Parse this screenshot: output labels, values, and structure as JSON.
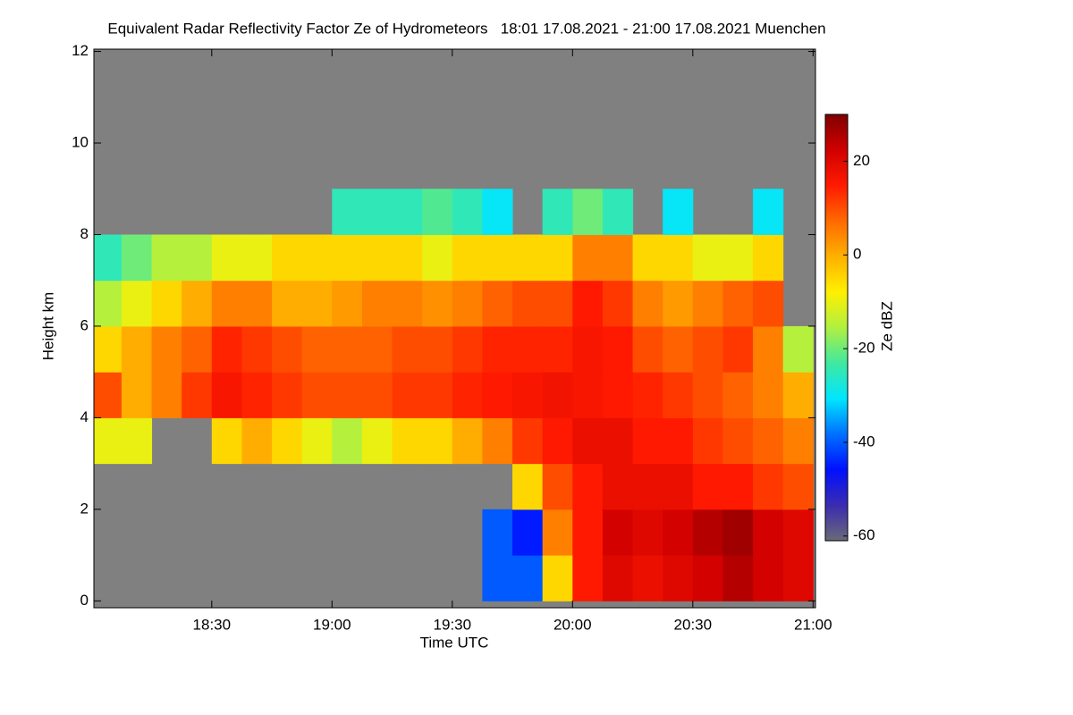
{
  "chart_data": {
    "type": "heatmap",
    "title": "Equivalent Radar Reflectivity Factor Ze of Hydrometeors   18:01 17.08.2021 - 21:00 17.08.2021 Muenchen",
    "x_label": "Time UTC",
    "y_label": "Height km",
    "colorbar_label": "Ze dBZ",
    "background": "#808080",
    "colors": [
      "#6a6a78",
      "#3a2cb0",
      "#0010ff",
      "#0070ff",
      "#00e6ff",
      "#40e8a0",
      "#b0f040",
      "#fff000",
      "#ffb000",
      "#ff6a00",
      "#ff1a00",
      "#d00000",
      "#800000"
    ],
    "xlim": [
      18.01,
      21.01
    ],
    "ylim": [
      -0.15,
      12.05
    ],
    "zlim": [
      -61,
      30
    ],
    "xticks": [
      {
        "value": 18.5,
        "label": "18:30"
      },
      {
        "value": 19.0,
        "label": "19:00"
      },
      {
        "value": 19.5,
        "label": "19:30"
      },
      {
        "value": 20.0,
        "label": "20:00"
      },
      {
        "value": 20.5,
        "label": "20:30"
      },
      {
        "value": 21.0,
        "label": "21:00"
      }
    ],
    "yticks": [
      0,
      2,
      4,
      6,
      8,
      10,
      12
    ],
    "zticks": [
      20,
      0,
      -20,
      -40,
      -60
    ],
    "x": [
      18.0625,
      18.1875,
      18.3125,
      18.4375,
      18.5625,
      18.6875,
      18.8125,
      18.9375,
      19.0625,
      19.1875,
      19.3125,
      19.4375,
      19.5625,
      19.6875,
      19.8125,
      19.9375,
      20.0625,
      20.1875,
      20.3125,
      20.4375,
      20.5625,
      20.6875,
      20.8125,
      20.9375
    ],
    "y": [
      0.5,
      1.5,
      2.5,
      3.5,
      4.5,
      5.5,
      6.5,
      7.5,
      8.5,
      9.5,
      10.5,
      11.5
    ],
    "values": [
      [
        null,
        null,
        null,
        null,
        null,
        null,
        null,
        null,
        null,
        null,
        null,
        null,
        null,
        -40,
        -40,
        -5,
        15,
        20,
        18,
        20,
        22,
        25,
        22,
        20
      ],
      [
        null,
        null,
        null,
        null,
        null,
        null,
        null,
        null,
        null,
        null,
        null,
        null,
        null,
        -40,
        -45,
        5,
        15,
        22,
        20,
        22,
        25,
        27,
        22,
        20
      ],
      [
        null,
        null,
        null,
        null,
        null,
        null,
        null,
        null,
        null,
        null,
        null,
        null,
        null,
        null,
        -5,
        10,
        15,
        18,
        18,
        18,
        15,
        15,
        12,
        10
      ],
      [
        -10,
        -10,
        null,
        null,
        -5,
        0,
        -5,
        -10,
        -15,
        -10,
        -5,
        -5,
        0,
        5,
        12,
        15,
        18,
        18,
        15,
        15,
        12,
        10,
        8,
        5
      ],
      [
        10,
        0,
        5,
        12,
        16,
        14,
        12,
        10,
        10,
        10,
        12,
        12,
        14,
        15,
        16,
        17,
        16,
        15,
        14,
        12,
        10,
        8,
        5,
        0
      ],
      [
        -5,
        0,
        5,
        8,
        14,
        12,
        10,
        8,
        8,
        8,
        10,
        10,
        12,
        14,
        14,
        14,
        16,
        15,
        10,
        8,
        10,
        12,
        5,
        -15
      ],
      [
        -15,
        -10,
        -5,
        0,
        5,
        5,
        0,
        0,
        2,
        5,
        5,
        3,
        5,
        8,
        10,
        10,
        15,
        12,
        5,
        2,
        5,
        8,
        10,
        null
      ],
      [
        -25,
        -20,
        -15,
        -15,
        -10,
        -10,
        -5,
        -5,
        -5,
        -5,
        -5,
        -10,
        -5,
        -5,
        -5,
        -5,
        5,
        5,
        -5,
        -5,
        -10,
        -10,
        -5,
        null
      ],
      [
        null,
        null,
        null,
        null,
        null,
        null,
        null,
        null,
        -25,
        -25,
        -25,
        -22,
        -25,
        -30,
        null,
        -25,
        -20,
        -25,
        null,
        -30,
        null,
        null,
        -30,
        null
      ],
      [
        null,
        null,
        null,
        null,
        null,
        null,
        null,
        null,
        null,
        null,
        null,
        null,
        null,
        null,
        null,
        null,
        null,
        null,
        null,
        null,
        null,
        null,
        null,
        null
      ],
      [
        null,
        null,
        null,
        null,
        null,
        null,
        null,
        null,
        null,
        null,
        null,
        null,
        null,
        null,
        null,
        null,
        null,
        null,
        null,
        null,
        null,
        null,
        null,
        null
      ],
      [
        null,
        null,
        null,
        null,
        null,
        null,
        null,
        null,
        null,
        null,
        null,
        null,
        null,
        null,
        null,
        null,
        null,
        null,
        null,
        null,
        null,
        null,
        null,
        null
      ]
    ]
  }
}
